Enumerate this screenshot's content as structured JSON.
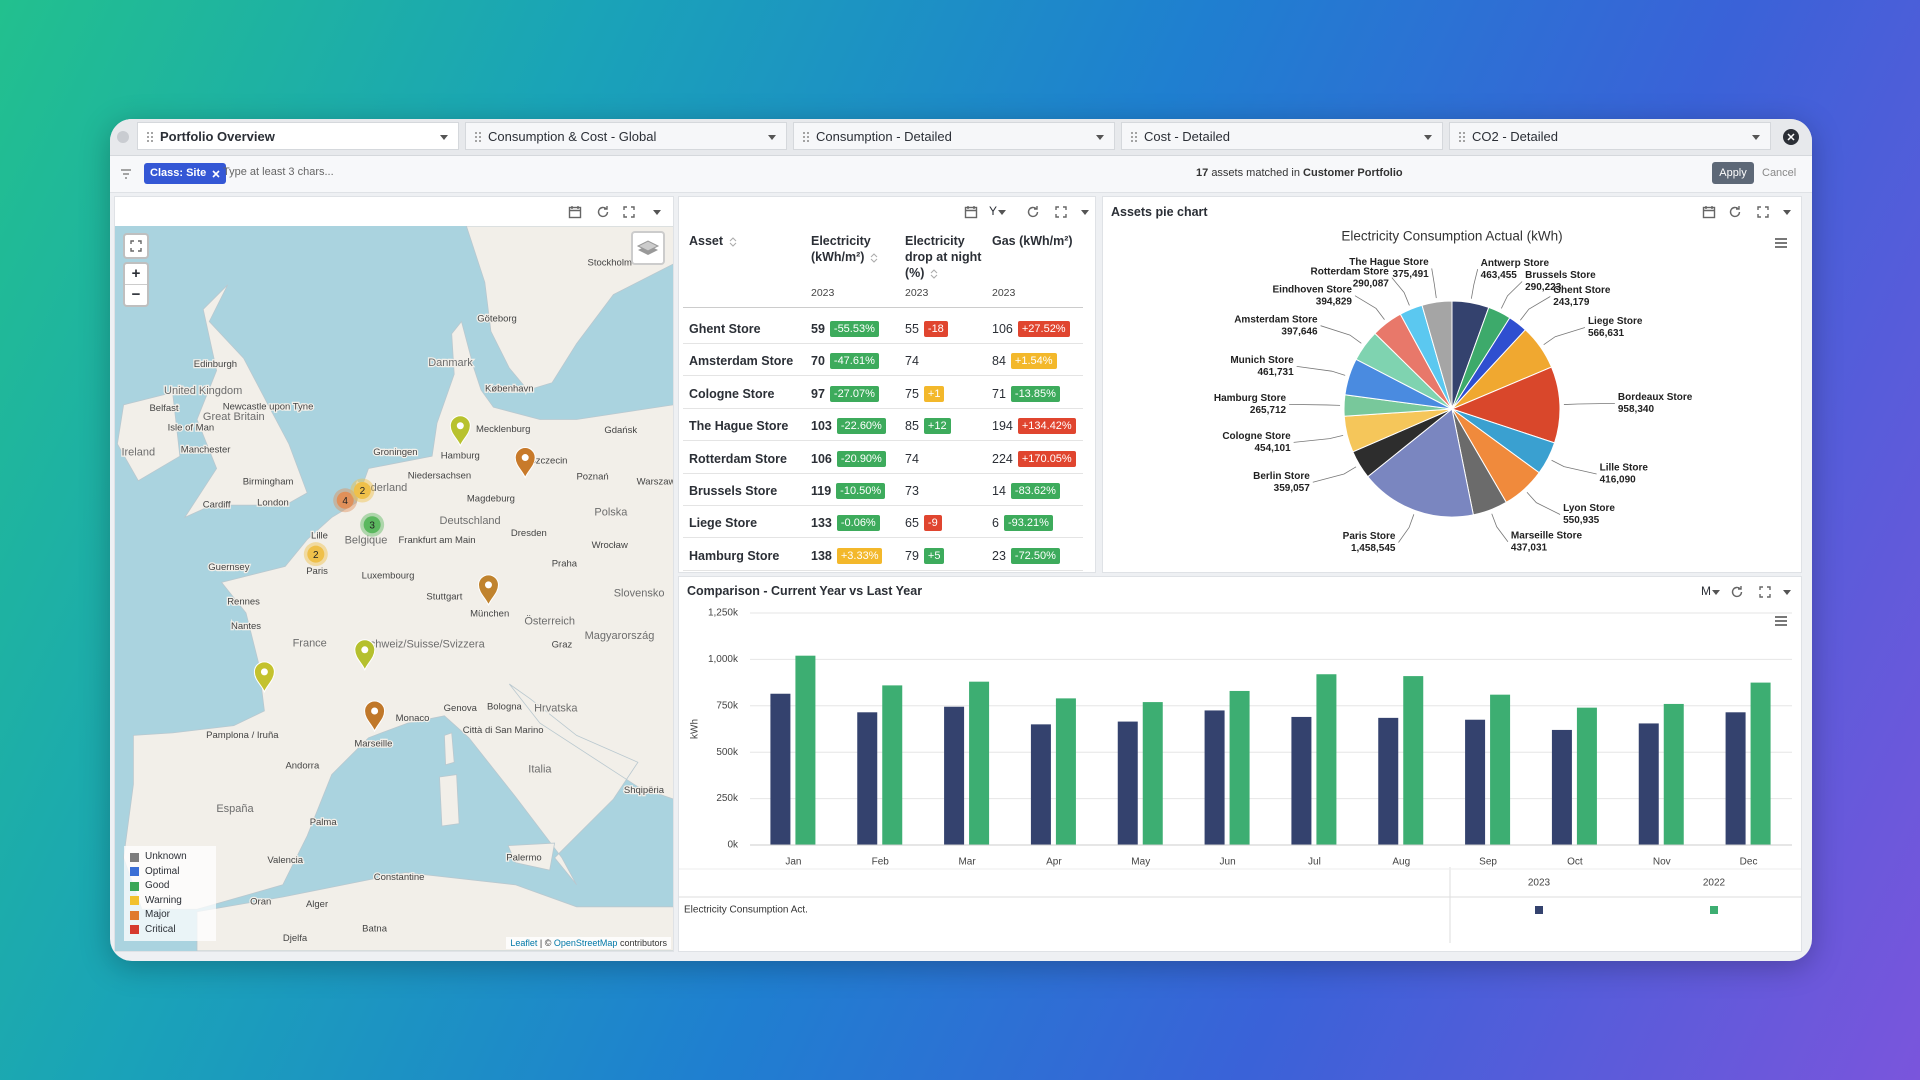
{
  "tabs": [
    "Portfolio Overview",
    "Consumption & Cost - Global",
    "Consumption - Detailed",
    "Cost - Detailed",
    "CO2 - Detailed"
  ],
  "filter": {
    "chip": "Class: Site",
    "placeholder": "Type at least 3 chars...",
    "count": "17",
    "matched_text": "assets matched in",
    "portfolio": "Customer Portfolio",
    "apply": "Apply",
    "cancel": "Cancel"
  },
  "map": {
    "zoom_in": "+",
    "zoom_out": "−",
    "labels": [
      "Stockholm",
      "Göteborg",
      "Danmark",
      "København",
      "Edinburgh",
      "United Kingdom",
      "Newcastle upon Tyne",
      "Belfast",
      "Great Britain",
      "Isle of Man",
      "Ireland",
      "Manchester",
      "Birmingham",
      "Cardiff",
      "London",
      "Guernsey",
      "Rennes",
      "Nantes",
      "France",
      "Pamplona / Iruña",
      "Andorra",
      "España",
      "Valencia",
      "Palma",
      "Marseille",
      "Monaco",
      "Genova",
      "Bologna",
      "Città di San Marino",
      "Italia",
      "Palermo",
      "Oran",
      "Alger",
      "Constantine",
      "Djelfa",
      "Batna",
      "Paris",
      "Lille",
      "Belgique",
      "Nederland",
      "Groningen",
      "Hamburg",
      "Mecklenburg",
      "Niedersachsen",
      "Magdeburg",
      "Deutschland",
      "Frankfurt am Main",
      "Luxembourg",
      "Stuttgart",
      "München",
      "Dresden",
      "Szczecin",
      "Gdańsk",
      "Poznań",
      "Warszawa",
      "Polska",
      "Wrocław",
      "Praha",
      "Slovensko",
      "Österreich",
      "Schweiz/Suisse/Svizzera",
      "Graz",
      "Magyarország",
      "Hrvatska",
      "Shqipëria"
    ],
    "clusters": [
      "4",
      "2",
      "3",
      "2"
    ],
    "legend": [
      {
        "name": "Unknown",
        "color": "#7d7d7d"
      },
      {
        "name": "Optimal",
        "color": "#3b6fd6"
      },
      {
        "name": "Good",
        "color": "#3aa757"
      },
      {
        "name": "Warning",
        "color": "#f2c12e"
      },
      {
        "name": "Major",
        "color": "#e07a2e"
      },
      {
        "name": "Critical",
        "color": "#d63a2e"
      }
    ],
    "attribution": {
      "link": "Leaflet",
      "separator": "| ©",
      "osm": "OpenStreetMap",
      "tail": "contributors"
    }
  },
  "table": {
    "period": "Y",
    "headers": [
      "Asset",
      "Electricity (kWh/m²)",
      "Electricity drop at night (%)",
      "Gas (kWh/m²)"
    ],
    "years": [
      "2023",
      "2023",
      "2023"
    ],
    "rows": [
      {
        "asset": "Ghent Store",
        "cells": [
          {
            "value": 59,
            "delta": "-55.53%",
            "color": "#3dab5c"
          },
          {
            "value": 55,
            "delta": "-18",
            "color": "#e0452f"
          },
          {
            "value": 106,
            "delta": "+27.52%",
            "color": "#e0452f"
          }
        ]
      },
      {
        "asset": "Amsterdam Store",
        "cells": [
          {
            "value": 70,
            "delta": "-47.61%",
            "color": "#3dab5c"
          },
          {
            "value": 74,
            "delta": null,
            "color": null
          },
          {
            "value": 84,
            "delta": "+1.54%",
            "color": "#f3b82b"
          }
        ]
      },
      {
        "asset": "Cologne Store",
        "cells": [
          {
            "value": 97,
            "delta": "-27.07%",
            "color": "#3dab5c"
          },
          {
            "value": 75,
            "delta": "+1",
            "color": "#f3b82b"
          },
          {
            "value": 71,
            "delta": "-13.85%",
            "color": "#3dab5c"
          }
        ]
      },
      {
        "asset": "The Hague Store",
        "cells": [
          {
            "value": 103,
            "delta": "-22.60%",
            "color": "#3dab5c"
          },
          {
            "value": 85,
            "delta": "+12",
            "color": "#3dab5c"
          },
          {
            "value": 194,
            "delta": "+134.42%",
            "color": "#e0452f"
          }
        ]
      },
      {
        "asset": "Rotterdam Store",
        "cells": [
          {
            "value": 106,
            "delta": "-20.90%",
            "color": "#3dab5c"
          },
          {
            "value": 74,
            "delta": null,
            "color": null
          },
          {
            "value": 224,
            "delta": "+170.05%",
            "color": "#e0452f"
          }
        ]
      },
      {
        "asset": "Brussels Store",
        "cells": [
          {
            "value": 119,
            "delta": "-10.50%",
            "color": "#3dab5c"
          },
          {
            "value": 73,
            "delta": null,
            "color": null
          },
          {
            "value": 14,
            "delta": "-83.62%",
            "color": "#3dab5c"
          }
        ]
      },
      {
        "asset": "Liege Store",
        "cells": [
          {
            "value": 133,
            "delta": "-0.06%",
            "color": "#3dab5c"
          },
          {
            "value": 65,
            "delta": "-9",
            "color": "#e0452f"
          },
          {
            "value": 6,
            "delta": "-93.21%",
            "color": "#3dab5c"
          }
        ]
      },
      {
        "asset": "Hamburg Store",
        "cells": [
          {
            "value": 138,
            "delta": "+3.33%",
            "color": "#f3b82b"
          },
          {
            "value": 79,
            "delta": "+5",
            "color": "#3dab5c"
          },
          {
            "value": 23,
            "delta": "-72.50%",
            "color": "#3dab5c"
          }
        ]
      }
    ]
  },
  "chart_data": [
    {
      "type": "pie",
      "panel_title": "Assets pie chart",
      "title": "Electricity Consumption Actual (kWh)",
      "categories": [
        "Antwerp Store",
        "Brussels Store",
        "Ghent Store",
        "Liege Store",
        "Bordeaux Store",
        "Lille Store",
        "Lyon Store",
        "Marseille Store",
        "Paris Store",
        "Berlin Store",
        "Cologne Store",
        "Hamburg Store",
        "Munich Store",
        "Amsterdam Store",
        "Eindhoven Store",
        "Rotterdam Store",
        "The Hague Store"
      ],
      "values": [
        463455,
        290223,
        243179,
        566631,
        958340,
        416090,
        550935,
        437031,
        1458545,
        359057,
        454101,
        265712,
        461731,
        397646,
        394829,
        290087,
        375491
      ],
      "value_labels": [
        "463,455",
        "290,223",
        "243,179",
        "566,631",
        "958,340",
        "416,090",
        "550,935",
        "437,031",
        "1,458,545",
        "359,057",
        "454,101",
        "265,712",
        "461,731",
        "397,646",
        "394,829",
        "290,087",
        "375,491"
      ],
      "colors": [
        "#34426e",
        "#3daa6b",
        "#2f4fd0",
        "#f0a830",
        "#d9472b",
        "#3aa0d0",
        "#f08a3c",
        "#6b6b6b",
        "#7a86c0",
        "#2d2d2d",
        "#f5c65a",
        "#78c89b",
        "#4a8be0",
        "#7fd3b0",
        "#e8786a",
        "#5bc8f0",
        "#a5a5a5"
      ]
    },
    {
      "type": "bar",
      "title": "Comparison - Current Year vs Last Year",
      "period": "M",
      "ylabel": "kWh",
      "categories": [
        "Jan",
        "Feb",
        "Mar",
        "Apr",
        "May",
        "Jun",
        "Jul",
        "Aug",
        "Sep",
        "Oct",
        "Nov",
        "Dec"
      ],
      "series": [
        {
          "name": "2023",
          "color": "#34426e",
          "values": [
            815000,
            715000,
            745000,
            650000,
            665000,
            725000,
            690000,
            685000,
            675000,
            620000,
            655000,
            715000
          ]
        },
        {
          "name": "2022",
          "color": "#3dae72",
          "values": [
            1020000,
            860000,
            880000,
            790000,
            770000,
            830000,
            920000,
            910000,
            810000,
            740000,
            760000,
            875000
          ]
        }
      ],
      "ylim": [
        0,
        1250000
      ],
      "yticks": [
        {
          "value": 0,
          "label": "0k"
        },
        {
          "value": 250000,
          "label": "250k"
        },
        {
          "value": 500000,
          "label": "500k"
        },
        {
          "value": 750000,
          "label": "750k"
        },
        {
          "value": 1000000,
          "label": "1,000k"
        },
        {
          "value": 1250000,
          "label": "1,250k"
        }
      ],
      "grid": true,
      "table_row_label": "Electricity Consumption Act."
    }
  ]
}
